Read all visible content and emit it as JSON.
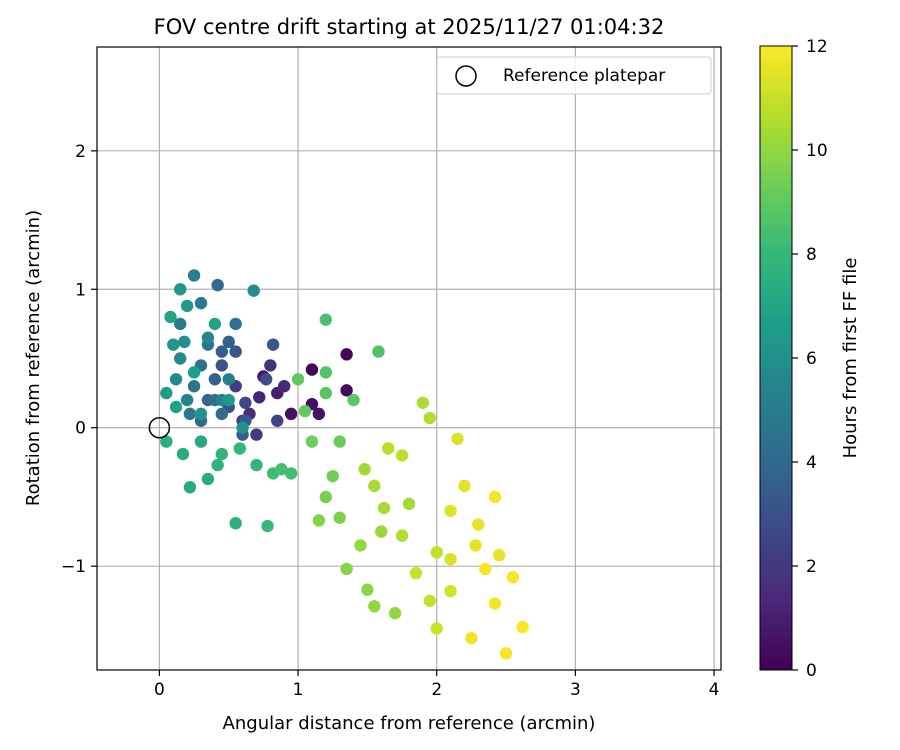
{
  "chart_data": {
    "type": "scatter",
    "title": "FOV centre drift starting at 2025/11/27 01:04:32",
    "xlabel": "Angular distance from reference (arcmin)",
    "ylabel": "Rotation from reference (arcmin)",
    "xlim": [
      -0.45,
      4.05
    ],
    "ylim": [
      -1.75,
      2.75
    ],
    "xticks": [
      0,
      1,
      2,
      3,
      4
    ],
    "xtick_labels": [
      "0",
      "1",
      "2",
      "3",
      "4"
    ],
    "yticks": [
      -1,
      0,
      1,
      2
    ],
    "ytick_labels": [
      "−1",
      "0",
      "1",
      "2"
    ],
    "grid": true,
    "legend": {
      "position": "top-right",
      "entries": [
        "Reference platepar"
      ]
    },
    "reference_point": {
      "x": 0,
      "y": 0,
      "label": "Reference platepar"
    },
    "colorbar": {
      "label": "Hours from first FF file",
      "colormap": "viridis",
      "min": 0,
      "max": 12,
      "ticks": [
        0,
        2,
        4,
        6,
        8,
        10,
        12
      ],
      "tick_labels": [
        "0",
        "2",
        "4",
        "6",
        "8",
        "10",
        "12"
      ]
    },
    "color_stops": [
      "#440154",
      "#482878",
      "#3e4989",
      "#31688e",
      "#26828e",
      "#1f9e89",
      "#35b779",
      "#6ece58",
      "#b5de2b",
      "#fde725"
    ],
    "points_fields": [
      "x",
      "y",
      "hours"
    ],
    "points": [
      [
        1.1,
        0.42,
        0.1
      ],
      [
        1.35,
        0.53,
        0.2
      ],
      [
        1.35,
        0.27,
        0.3
      ],
      [
        1.1,
        0.17,
        0.4
      ],
      [
        0.95,
        0.1,
        0.5
      ],
      [
        1.15,
        0.1,
        0.6
      ],
      [
        0.75,
        0.37,
        0.8
      ],
      [
        0.85,
        0.25,
        1.0
      ],
      [
        0.72,
        0.22,
        1.2
      ],
      [
        0.9,
        0.3,
        1.4
      ],
      [
        0.65,
        0.1,
        1.5
      ],
      [
        0.8,
        0.45,
        1.6
      ],
      [
        0.6,
        0.05,
        1.8
      ],
      [
        0.7,
        -0.05,
        2.0
      ],
      [
        0.55,
        0.3,
        2.2
      ],
      [
        0.85,
        0.05,
        2.4
      ],
      [
        0.62,
        0.18,
        2.6
      ],
      [
        0.77,
        0.35,
        2.8
      ],
      [
        0.5,
        0.15,
        3.0
      ],
      [
        0.45,
        0.45,
        3.1
      ],
      [
        0.82,
        0.6,
        3.2
      ],
      [
        0.55,
        0.55,
        3.3
      ],
      [
        0.62,
        0.05,
        3.4
      ],
      [
        0.6,
        -0.05,
        3.5
      ],
      [
        0.45,
        0.55,
        3.6
      ],
      [
        0.4,
        0.35,
        3.7
      ],
      [
        0.5,
        0.62,
        3.8
      ],
      [
        0.35,
        0.2,
        3.9
      ],
      [
        0.3,
        0.05,
        4.0
      ],
      [
        0.42,
        1.03,
        4.1
      ],
      [
        0.45,
        0.1,
        4.2
      ],
      [
        0.4,
        0.2,
        4.3
      ],
      [
        0.55,
        0.75,
        4.4
      ],
      [
        0.3,
        0.45,
        4.5
      ],
      [
        0.25,
        0.3,
        4.6
      ],
      [
        0.35,
        0.6,
        4.7
      ],
      [
        0.22,
        0.1,
        4.8
      ],
      [
        0.3,
        0.9,
        4.9
      ],
      [
        0.15,
        0.75,
        5.0
      ],
      [
        0.25,
        1.1,
        5.1
      ],
      [
        0.5,
        0.35,
        5.2
      ],
      [
        0.2,
        0.2,
        5.3
      ],
      [
        0.45,
        0.2,
        5.4
      ],
      [
        0.35,
        0.65,
        5.5
      ],
      [
        0.15,
        0.5,
        5.6
      ],
      [
        0.12,
        0.35,
        5.7
      ],
      [
        0.68,
        0.99,
        5.8
      ],
      [
        0.18,
        0.62,
        5.9
      ],
      [
        0.6,
        0.0,
        6.0
      ],
      [
        0.3,
        0.1,
        6.1
      ],
      [
        0.1,
        0.6,
        6.2
      ],
      [
        0.15,
        1.0,
        6.3
      ],
      [
        0.5,
        0.2,
        6.4
      ],
      [
        0.2,
        0.88,
        6.5
      ],
      [
        0.05,
        0.25,
        6.6
      ],
      [
        0.25,
        0.4,
        6.7
      ],
      [
        0.12,
        0.15,
        6.8
      ],
      [
        0.4,
        0.75,
        6.9
      ],
      [
        0.08,
        0.8,
        7.0
      ],
      [
        0.3,
        -0.1,
        7.1
      ],
      [
        0.22,
        -0.43,
        7.2
      ],
      [
        0.35,
        -0.37,
        7.3
      ],
      [
        0.17,
        -0.19,
        7.4
      ],
      [
        0.05,
        -0.1,
        7.5
      ],
      [
        0.55,
        -0.69,
        7.6
      ],
      [
        0.42,
        -0.27,
        7.7
      ],
      [
        0.45,
        -0.19,
        7.8
      ],
      [
        0.7,
        -0.27,
        7.9
      ],
      [
        0.58,
        -0.15,
        8.0
      ],
      [
        0.78,
        -0.71,
        8.1
      ],
      [
        0.82,
        -0.33,
        8.2
      ],
      [
        0.95,
        -0.33,
        8.3
      ],
      [
        0.88,
        -0.3,
        8.4
      ],
      [
        1.2,
        0.78,
        8.5
      ],
      [
        1.58,
        0.55,
        8.6
      ],
      [
        1.2,
        0.4,
        8.7
      ],
      [
        1.2,
        0.25,
        8.8
      ],
      [
        1.4,
        0.2,
        8.9
      ],
      [
        1.0,
        0.35,
        9.0
      ],
      [
        1.05,
        0.12,
        9.1
      ],
      [
        1.3,
        -0.1,
        9.2
      ],
      [
        1.1,
        -0.1,
        9.3
      ],
      [
        1.25,
        -0.35,
        9.4
      ],
      [
        1.2,
        -0.5,
        9.5
      ],
      [
        1.3,
        -0.65,
        9.6
      ],
      [
        1.15,
        -0.67,
        9.7
      ],
      [
        1.35,
        -1.02,
        9.8
      ],
      [
        1.5,
        -1.17,
        9.9
      ],
      [
        1.55,
        -1.29,
        10.0
      ],
      [
        1.7,
        -1.34,
        10.0
      ],
      [
        1.45,
        -0.85,
        10.1
      ],
      [
        1.6,
        -0.75,
        10.2
      ],
      [
        1.8,
        -0.55,
        10.3
      ],
      [
        1.55,
        -0.42,
        10.4
      ],
      [
        1.9,
        0.18,
        10.5
      ],
      [
        1.95,
        0.07,
        10.6
      ],
      [
        1.65,
        -0.15,
        10.7
      ],
      [
        1.75,
        -0.2,
        10.8
      ],
      [
        2.0,
        -0.9,
        10.9
      ],
      [
        1.95,
        -1.25,
        11.0
      ],
      [
        2.0,
        -1.45,
        11.1
      ],
      [
        2.1,
        -1.18,
        11.2
      ],
      [
        2.15,
        -0.08,
        11.3
      ],
      [
        2.1,
        -0.6,
        11.4
      ],
      [
        2.2,
        -0.42,
        11.5
      ],
      [
        2.3,
        -0.7,
        11.6
      ],
      [
        2.25,
        -1.52,
        11.7
      ],
      [
        2.42,
        -0.5,
        11.8
      ],
      [
        2.5,
        -1.63,
        11.9
      ],
      [
        2.62,
        -1.44,
        12.0
      ],
      [
        2.55,
        -1.08,
        11.9
      ],
      [
        2.42,
        -1.27,
        11.8
      ],
      [
        2.35,
        -1.02,
        11.9
      ],
      [
        2.45,
        -0.92,
        11.6
      ],
      [
        2.28,
        -0.85,
        11.5
      ],
      [
        2.1,
        -0.95,
        11.3
      ],
      [
        1.85,
        -1.05,
        11.0
      ],
      [
        1.75,
        -0.78,
        10.6
      ],
      [
        1.62,
        -0.58,
        10.4
      ],
      [
        1.48,
        -0.3,
        10.3
      ]
    ]
  }
}
